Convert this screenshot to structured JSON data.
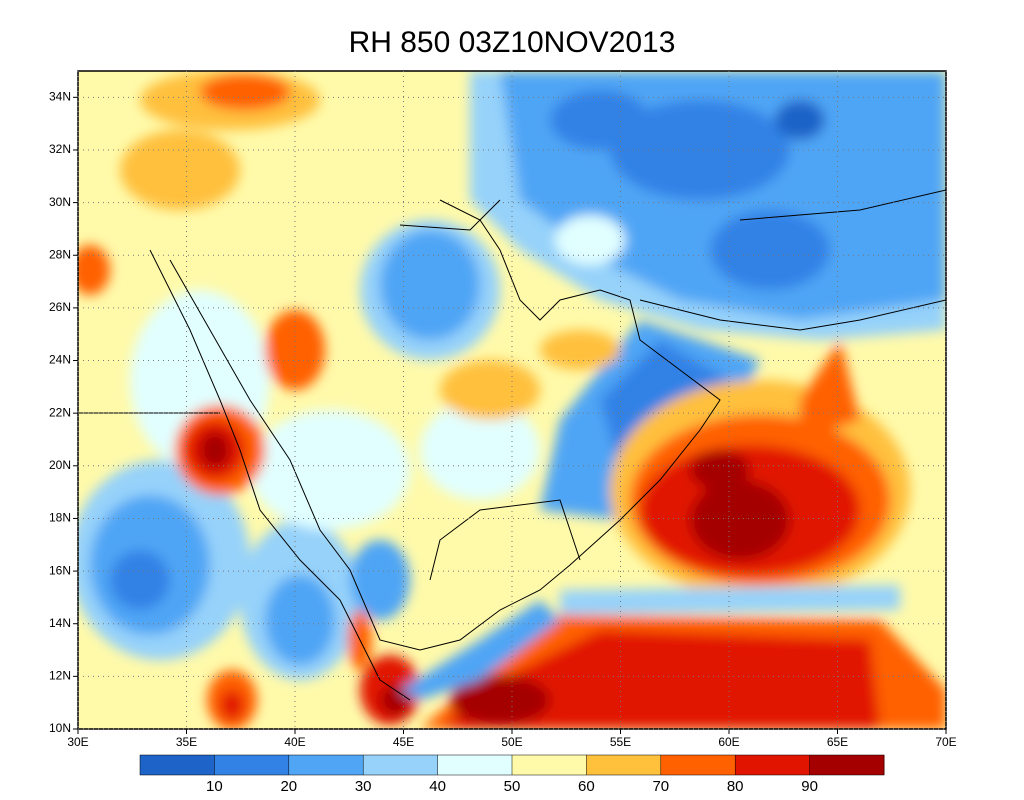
{
  "title": "RH 850 03Z10NOV2013",
  "map": {
    "xlim": [
      30,
      70
    ],
    "ylim": [
      10,
      35
    ],
    "xticks": [
      {
        "value": 30,
        "label": "30E"
      },
      {
        "value": 35,
        "label": "35E"
      },
      {
        "value": 40,
        "label": "40E"
      },
      {
        "value": 45,
        "label": "45E"
      },
      {
        "value": 50,
        "label": "50E"
      },
      {
        "value": 55,
        "label": "55E"
      },
      {
        "value": 60,
        "label": "60E"
      },
      {
        "value": 65,
        "label": "65E"
      },
      {
        "value": 70,
        "label": "70E"
      }
    ],
    "yticks": [
      {
        "value": 10,
        "label": "10N"
      },
      {
        "value": 12,
        "label": "12N"
      },
      {
        "value": 14,
        "label": "14N"
      },
      {
        "value": 16,
        "label": "16N"
      },
      {
        "value": 18,
        "label": "18N"
      },
      {
        "value": 20,
        "label": "20N"
      },
      {
        "value": 22,
        "label": "22N"
      },
      {
        "value": 24,
        "label": "24N"
      },
      {
        "value": 26,
        "label": "26N"
      },
      {
        "value": 28,
        "label": "28N"
      },
      {
        "value": 30,
        "label": "30N"
      },
      {
        "value": 32,
        "label": "32N"
      },
      {
        "value": 34,
        "label": "34N"
      }
    ],
    "grid": true
  },
  "colorbar": {
    "colors": [
      "#1e64c8",
      "#3282e6",
      "#50a5f5",
      "#96d2fa",
      "#e1ffff",
      "#fffaaa",
      "#ffc03c",
      "#ff6000",
      "#e11400",
      "#a50000"
    ],
    "levels": [
      10,
      20,
      30,
      40,
      50,
      60,
      70,
      80,
      90
    ]
  }
}
